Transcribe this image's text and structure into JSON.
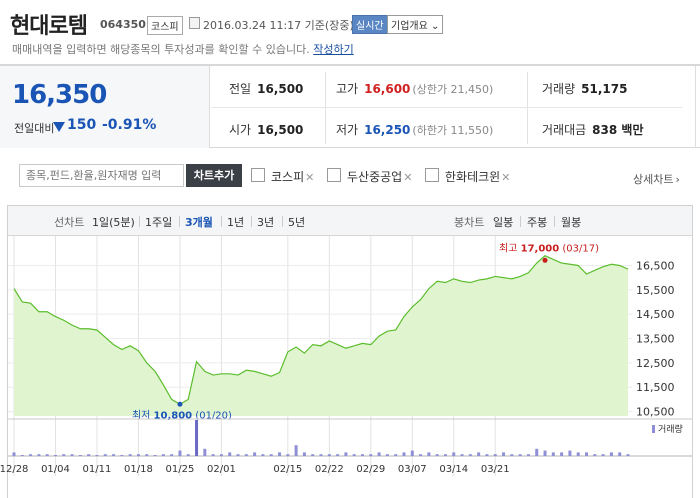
{
  "header": {
    "name": "현대로템",
    "code": "064350",
    "market": "코스피",
    "datetime": "2016.03.24 11:17 기준(장중)",
    "live_btn": "실시간",
    "corp_btn": "기업개요",
    "corp_arrow": "⌄",
    "notice": "매매내역을 입력하면 해당종목의 투자성과를 확인할 수 있습니다.",
    "notice_link": "작성하기"
  },
  "quote": {
    "price": "16,350",
    "change_label": "전일대비",
    "change": "150",
    "change_pct": "-0.91%",
    "prev_label": "전일",
    "prev": "16,500",
    "open_label": "시가",
    "open": "16,500",
    "high_label": "고가",
    "high": "16,600",
    "upper_limit": "(상한가 21,450)",
    "low_label": "저가",
    "low": "16,250",
    "lower_limit": "(하한가 11,550)",
    "volume_label": "거래량",
    "volume": "51,175",
    "amount_label": "거래대금",
    "amount": "838 백만",
    "colors": {
      "up": "#d12020",
      "down": "#1a55b5"
    }
  },
  "compare": {
    "placeholder": "종목,펀드,환율,원자재명 입력",
    "add_btn": "차트추가",
    "items": [
      "코스피",
      "두산중공업",
      "한화테크윈"
    ],
    "remove_glyph": "✕",
    "detail_link": "상세차트"
  },
  "chart_tabs": {
    "line_label": "선차트",
    "line_tabs": [
      "1일(5분)",
      "1주일",
      "3개월",
      "1년",
      "3년",
      "5년"
    ],
    "selected": "3개월",
    "candle_label": "봉차트",
    "candle_tabs": [
      "일봉",
      "주봉",
      "월봉"
    ]
  },
  "chart_data": {
    "type": "area",
    "series": [
      {
        "values": [
          15550,
          15000,
          14950,
          14600,
          14600,
          14400,
          14250,
          14050,
          13900,
          13900,
          13850,
          13550,
          13250,
          13050,
          13200,
          13000,
          12500,
          12150,
          11600,
          11000,
          10800,
          11000,
          12550,
          12150,
          12000,
          12050,
          12050,
          12000,
          12200,
          12150,
          12050,
          11950,
          12100,
          12950,
          13150,
          12900,
          13250,
          13200,
          13400,
          13250,
          13100,
          13200,
          13300,
          13250,
          13600,
          13800,
          13850,
          14400,
          14800,
          15100,
          15550,
          15850,
          15800,
          15950,
          15850,
          15800,
          15900,
          15950,
          16050,
          16000,
          15950,
          16050,
          16200,
          16600,
          16900,
          16750,
          16600,
          16550,
          16500,
          16150,
          16300,
          16450,
          16550,
          16500,
          16350
        ]
      },
      {
        "name": "거래량",
        "values": [
          2,
          0,
          1,
          1,
          1,
          0,
          1,
          1,
          0,
          1,
          0,
          1,
          1,
          0,
          1,
          1,
          1,
          0,
          1,
          1,
          3,
          1,
          20,
          4,
          1,
          1,
          2,
          1,
          1,
          2,
          1,
          1,
          2,
          1,
          6,
          2,
          1,
          1,
          1,
          1,
          2,
          1,
          1,
          1,
          2,
          1,
          1,
          2,
          3,
          1,
          2,
          1,
          1,
          2,
          1,
          1,
          2,
          1,
          1,
          2,
          1,
          1,
          1,
          4,
          3,
          2,
          2,
          3,
          2,
          2,
          1,
          1,
          2,
          2,
          1
        ]
      }
    ],
    "x_ticks": [
      "12/28",
      "01/04",
      "01/11",
      "01/18",
      "01/25",
      "02/01",
      "02/15",
      "02/22",
      "02/29",
      "03/07",
      "03/14",
      "03/21"
    ],
    "x_tick_index": [
      0,
      5,
      10,
      15,
      20,
      25,
      33,
      38,
      43,
      48,
      53,
      58
    ],
    "y_ticks": [
      "16,500",
      "15,500",
      "14,500",
      "13,500",
      "12,500",
      "11,500",
      "10,500"
    ],
    "y_tick_values": [
      16500,
      15500,
      14500,
      13500,
      12500,
      11500,
      10500
    ],
    "ylim": [
      10400,
      17300
    ],
    "max_label": "최고",
    "max_value": "17,000",
    "max_date": "(03/17)",
    "min_label": "최저",
    "min_value": "10,800",
    "min_date": "(01/20)",
    "volume_legend": "거래량",
    "colors": {
      "line": "#5bbd2c",
      "fill": "#dff4cf",
      "volume": "#8f8fd6",
      "volume_peak": "#6a6ac4",
      "grid": "#e3e3e3",
      "max": "#c81e1e",
      "min": "#1a55b5"
    }
  }
}
